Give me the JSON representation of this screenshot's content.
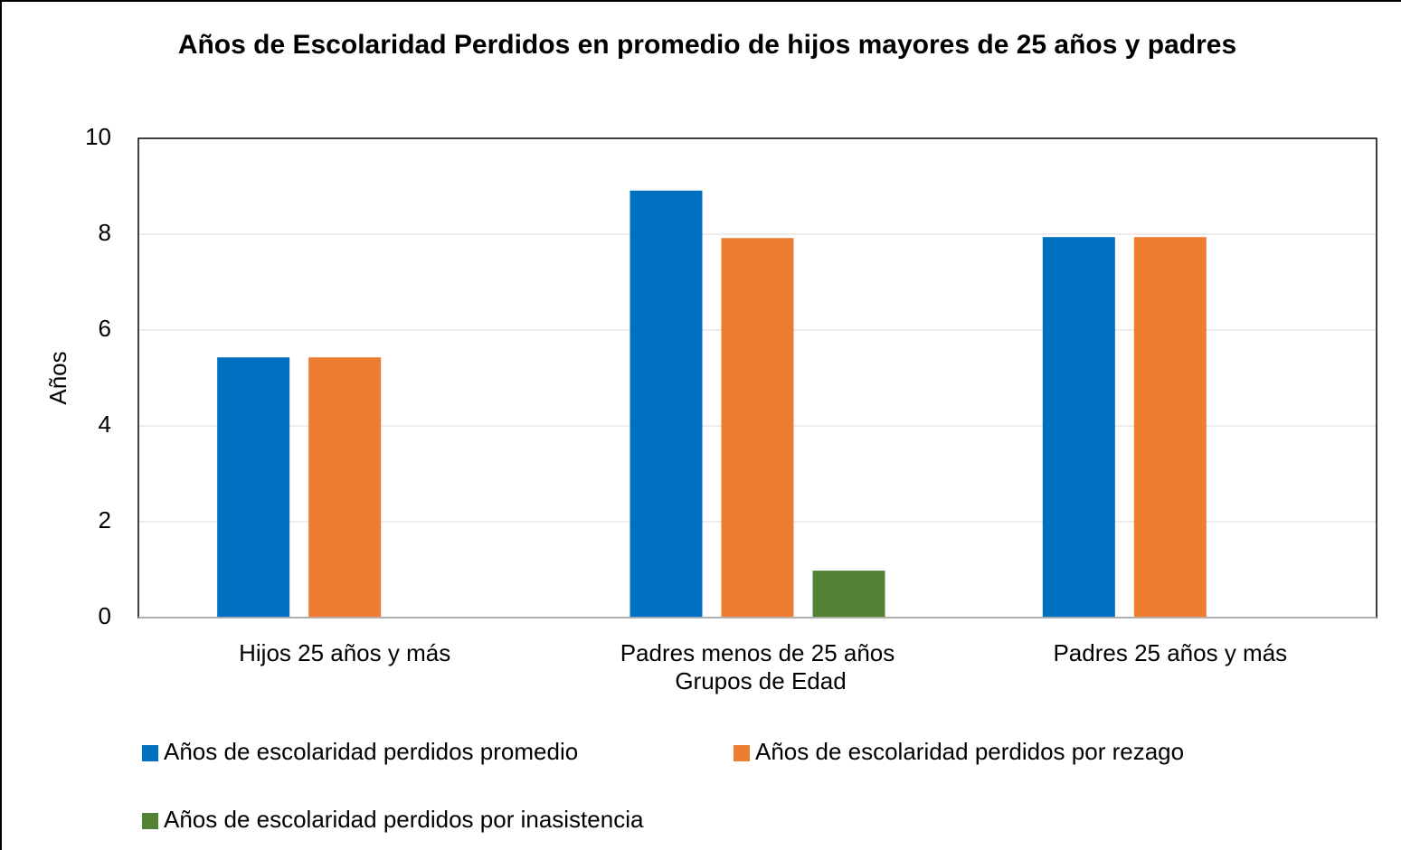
{
  "chart_data": {
    "type": "bar",
    "title": "Años de Escolaridad Perdidos en promedio de hijos mayores de 25 años y padres",
    "x_label": "Grupos de Edad",
    "y_label": "Años",
    "categories": [
      "Hijos 25 años y más",
      "Padres menos de 25 años",
      "Padres 25 años y más"
    ],
    "series": [
      {
        "name": "Años de escolaridad perdidos promedio",
        "color": "#0070c0",
        "values": [
          5.43,
          8.91,
          7.94
        ]
      },
      {
        "name": "Años de escolaridad perdidos por rezago",
        "color": "#ed7d31",
        "values": [
          5.43,
          7.92,
          7.94
        ]
      },
      {
        "name": "Años de escolaridad perdidos por inasistencia",
        "color": "#548235",
        "values": [
          0,
          0.98,
          0
        ]
      }
    ],
    "ylim": [
      0,
      10
    ],
    "yticks": [
      0,
      2,
      4,
      6,
      8,
      10
    ],
    "grid": true,
    "legend": "bottom"
  }
}
